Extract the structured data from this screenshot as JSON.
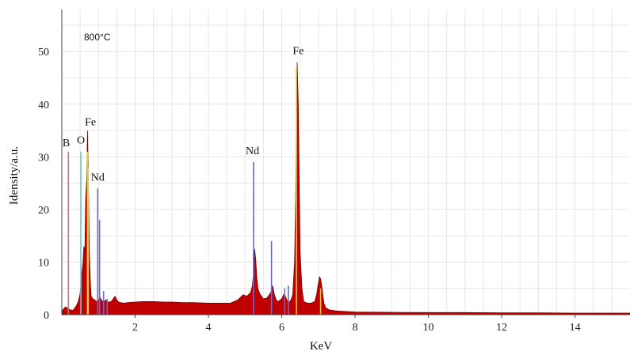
{
  "chart_data": {
    "type": "area",
    "annotation": "800°C",
    "xlabel": "KeV",
    "ylabel": "Idensity/a.u.",
    "xlim": [
      0,
      15.5
    ],
    "ylim": [
      0,
      58
    ],
    "x_ticks": [
      2,
      4,
      6,
      8,
      10,
      12,
      14
    ],
    "y_ticks": [
      0,
      10,
      20,
      30,
      40,
      50
    ],
    "grid": true,
    "legend": "none",
    "colors": {
      "spectrum": "#c00000",
      "spectrum_edge": "#7a0000",
      "marker_fe": "#e8c840",
      "marker_nd": "#6a6ad0",
      "marker_o": "#6cc8e0",
      "marker_b": "#b08080",
      "grid": "#e6e6e6"
    },
    "spectrum": {
      "x": [
        0.02,
        0.1,
        0.2,
        0.3,
        0.38,
        0.45,
        0.5,
        0.52,
        0.55,
        0.58,
        0.6,
        0.63,
        0.65,
        0.68,
        0.7,
        0.72,
        0.75,
        0.78,
        0.8,
        0.85,
        0.9,
        0.95,
        1.0,
        1.05,
        1.1,
        1.15,
        1.2,
        1.25,
        1.3,
        1.35,
        1.4,
        1.45,
        1.5,
        1.55,
        1.6,
        1.7,
        1.8,
        2.0,
        2.2,
        2.5,
        2.8,
        3.0,
        3.3,
        3.6,
        4.0,
        4.3,
        4.6,
        4.8,
        4.95,
        5.05,
        5.15,
        5.2,
        5.23,
        5.26,
        5.29,
        5.32,
        5.35,
        5.4,
        5.5,
        5.6,
        5.7,
        5.75,
        5.8,
        5.85,
        5.9,
        6.0,
        6.05,
        6.1,
        6.15,
        6.2,
        6.25,
        6.3,
        6.35,
        6.38,
        6.4,
        6.42,
        6.45,
        6.48,
        6.5,
        6.55,
        6.6,
        6.7,
        6.8,
        6.9,
        6.95,
        7.0,
        7.03,
        7.06,
        7.09,
        7.12,
        7.15,
        7.2,
        7.3,
        7.5,
        8.0,
        9.0,
        10.0,
        11.0,
        12.0,
        13.0,
        14.0,
        15.0,
        15.5
      ],
      "y": [
        0.8,
        1.5,
        1.0,
        0.8,
        1.5,
        2.5,
        4,
        6,
        8,
        10,
        13,
        12,
        22,
        26,
        35,
        28,
        12,
        6,
        3.5,
        3,
        2.8,
        2.5,
        2.8,
        3.2,
        2.6,
        2.5,
        2.8,
        2.4,
        2.4,
        2.5,
        3,
        3.5,
        2.8,
        2.4,
        2.3,
        2.2,
        2.3,
        2.4,
        2.5,
        2.5,
        2.4,
        2.4,
        2.3,
        2.3,
        2.2,
        2.2,
        2.2,
        2.8,
        3.8,
        3.5,
        4.2,
        5.5,
        8,
        12.5,
        10.5,
        7,
        5,
        4,
        3,
        3.2,
        4.2,
        5.5,
        3.8,
        2.8,
        2.5,
        3,
        3.8,
        3.5,
        2.6,
        2.3,
        2.8,
        3.8,
        10,
        22,
        38,
        48,
        40,
        22,
        12,
        5,
        2.5,
        2.2,
        2.2,
        2.5,
        3.8,
        6,
        7.2,
        6.8,
        5.5,
        3.8,
        2.2,
        1.3,
        0.9,
        0.7,
        0.5,
        0.45,
        0.4,
        0.4,
        0.35,
        0.35,
        0.3,
        0.3,
        0.3
      ]
    },
    "element_markers": [
      {
        "element": "B",
        "x": 0.18,
        "height": 31,
        "color_key": "marker_b"
      },
      {
        "element": "O",
        "x": 0.52,
        "height": 31,
        "color_key": "marker_o"
      },
      {
        "element": "Fe",
        "x": 0.7,
        "height": 31,
        "color_key": "marker_fe"
      },
      {
        "element": "Fe",
        "x": 0.72,
        "height": 28,
        "color_key": "marker_fe"
      },
      {
        "element": "Nd",
        "x": 0.98,
        "height": 24,
        "color_key": "marker_nd"
      },
      {
        "element": "Nd",
        "x": 1.03,
        "height": 18,
        "color_key": "marker_nd"
      },
      {
        "element": "Nd",
        "x": 1.14,
        "height": 4.5,
        "color_key": "marker_nd"
      },
      {
        "element": "Nd",
        "x": 1.24,
        "height": 3,
        "color_key": "marker_nd"
      },
      {
        "element": "Nd",
        "x": 5.23,
        "height": 29,
        "color_key": "marker_nd"
      },
      {
        "element": "Nd",
        "x": 5.72,
        "height": 14,
        "color_key": "marker_nd"
      },
      {
        "element": "Nd",
        "x": 6.08,
        "height": 5,
        "color_key": "marker_nd"
      },
      {
        "element": "Nd",
        "x": 6.18,
        "height": 5.5,
        "color_key": "marker_nd"
      },
      {
        "element": "Fe",
        "x": 6.4,
        "height": 47,
        "color_key": "marker_fe"
      },
      {
        "element": "Fe",
        "x": 7.06,
        "height": 5,
        "color_key": "marker_fe"
      }
    ],
    "peak_labels": [
      {
        "text": "B",
        "x": 0.12,
        "y": 32
      },
      {
        "text": "O",
        "x": 0.52,
        "y": 32.5
      },
      {
        "text": "Fe",
        "x": 0.78,
        "y": 36
      },
      {
        "text": "Nd",
        "x": 0.98,
        "y": 25.5
      },
      {
        "text": "Nd",
        "x": 5.2,
        "y": 30.5
      },
      {
        "text": "Fe",
        "x": 6.45,
        "y": 49.5
      }
    ]
  }
}
